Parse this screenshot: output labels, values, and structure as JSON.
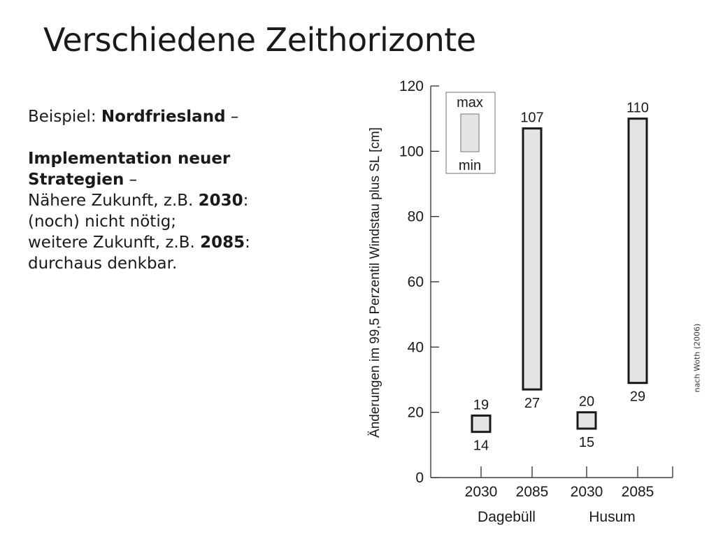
{
  "slide": {
    "title": "Verschiedene Zeithorizonte",
    "line1_prefix": "Beispiel: ",
    "line1_bold": "Nordfriesland",
    "line1_suffix": " –",
    "line2_bold": "Implementation neuer Strategien",
    "line2_suffix": "  –",
    "line3_prefix": "Nähere Zukunft, z.B. ",
    "line3_bold": "2030",
    "line3_suffix": ":",
    "line4": "(noch) nicht nötig;",
    "line5_prefix": "weitere Zukunft, z.B. ",
    "line5_bold": "2085",
    "line5_suffix": ":",
    "line6": "durchaus denkbar.",
    "credit": "nach Woth (2006)"
  },
  "chart_data": {
    "type": "bar",
    "subtype": "floating range bars (min–max)",
    "ylabel": "Änderungen im 99,5 Perzentil Windstau plus SL [cm]",
    "ylim": [
      0,
      120
    ],
    "yticks": [
      0,
      20,
      40,
      60,
      80,
      100,
      120
    ],
    "categories": [
      "2030",
      "2085",
      "2030",
      "2085"
    ],
    "groups": [
      {
        "name": "Dagebüll",
        "categories": [
          "2030",
          "2085"
        ]
      },
      {
        "name": "Husum",
        "categories": [
          "2030",
          "2085"
        ]
      }
    ],
    "series": [
      {
        "name": "min",
        "values": [
          14,
          27,
          15,
          29
        ]
      },
      {
        "name": "max",
        "values": [
          19,
          107,
          20,
          110
        ]
      }
    ],
    "legend": {
      "position": "top-left",
      "max_label": "max",
      "min_label": "min"
    },
    "bar_fill": "#e4e4e4",
    "bar_stroke": "#1a1a1a",
    "grid": false
  }
}
